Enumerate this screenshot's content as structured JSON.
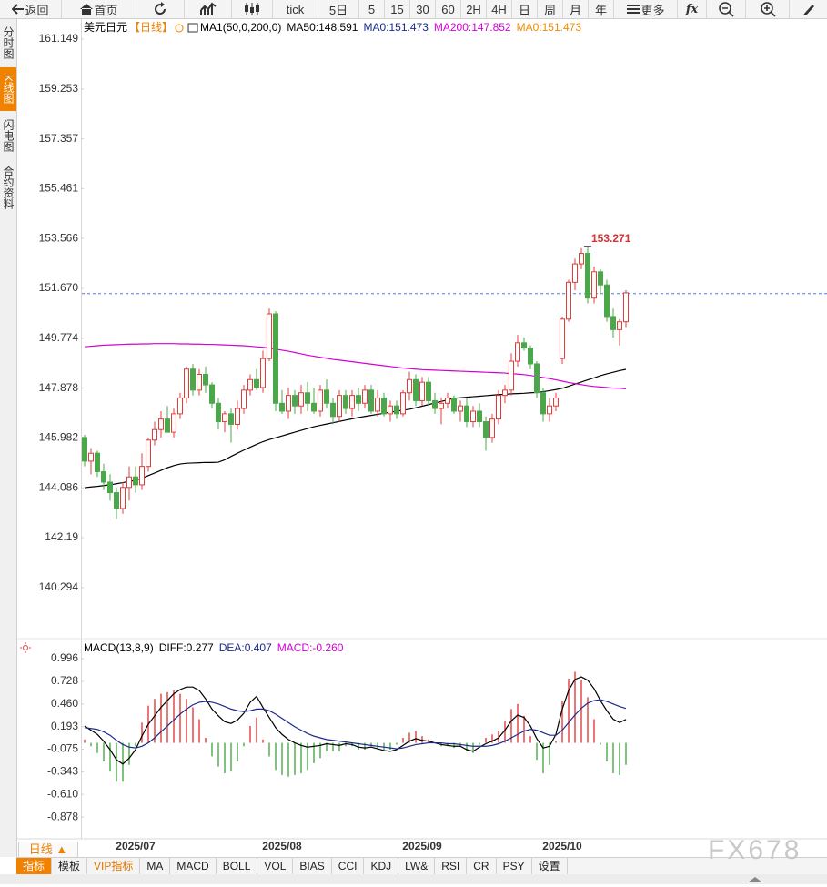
{
  "toolbar": {
    "back": "返回",
    "home": "首页",
    "tick": "tick",
    "periods": [
      "5日",
      "5",
      "15",
      "30",
      "60",
      "2H",
      "4H",
      "日",
      "周",
      "月",
      "年"
    ],
    "more": "更多",
    "fx": "fx"
  },
  "sidebar": [
    "分时图",
    "K线图",
    "闪电图",
    "合约资料"
  ],
  "period_button": "日线 ▲",
  "tabs": [
    "指标",
    "模板",
    "VIP指标",
    "MA",
    "MACD",
    "BOLL",
    "VOL",
    "BIAS",
    "CCI",
    "KDJ",
    "LW&",
    "RSI",
    "CR",
    "PSY",
    "设置"
  ],
  "watermark": "FX678",
  "chart_data": [
    {
      "type": "candlestick",
      "title": "美元日元",
      "period": "【日线】",
      "legend": [
        {
          "text": "MA1(50,0,200,0)",
          "color": "#000000"
        },
        {
          "text": "MA50:148.591",
          "color": "#000000"
        },
        {
          "text": "MA0:151.473",
          "color": "#1a2a8c"
        },
        {
          "text": "MA200:147.852",
          "color": "#d400d4"
        },
        {
          "text": "MA0:151.473",
          "color": "#f08c00"
        }
      ],
      "annotation": "153.271",
      "annotation_color": "#d63030",
      "up_color": "#e03c3c",
      "down_color": "#4aa84a",
      "ylim": [
        138.419,
        161.876
      ],
      "yticks": [
        161.149,
        159.253,
        157.357,
        155.461,
        153.566,
        {
          "value": 151.67,
          "label": "151.670"
        },
        149.774,
        147.878,
        145.982,
        144.086,
        142.19,
        140.294
      ],
      "grid": false,
      "ref_line": {
        "value": 151.473,
        "color": "#4a7be0"
      },
      "categories": [
        null,
        null,
        null,
        null,
        null,
        null,
        null,
        null,
        "2025/07",
        null,
        null,
        null,
        null,
        null,
        null,
        null,
        null,
        null,
        null,
        null,
        null,
        null,
        null,
        null,
        null,
        null,
        null,
        null,
        null,
        null,
        null,
        "2025/08",
        null,
        null,
        null,
        null,
        null,
        null,
        null,
        null,
        null,
        null,
        null,
        null,
        null,
        null,
        null,
        null,
        null,
        null,
        null,
        null,
        null,
        "2025/09",
        null,
        null,
        null,
        null,
        null,
        null,
        null,
        null,
        null,
        null,
        null,
        null,
        null,
        null,
        null,
        null,
        null,
        null,
        null,
        null,
        null,
        "2025/10",
        null,
        null,
        null,
        null,
        null,
        null,
        null,
        null,
        null,
        null
      ],
      "ohlc": [
        [
          146.0,
          146.1,
          144.9,
          145.1
        ],
        [
          145.1,
          145.6,
          144.6,
          145.4
        ],
        [
          145.4,
          145.5,
          144.5,
          144.7
        ],
        [
          144.7,
          145.0,
          144.0,
          144.3
        ],
        [
          144.3,
          144.6,
          143.6,
          143.9
        ],
        [
          143.9,
          144.1,
          142.9,
          143.3
        ],
        [
          143.3,
          144.3,
          143.1,
          144.1
        ],
        [
          144.1,
          144.9,
          143.6,
          144.5
        ],
        [
          144.5,
          144.9,
          143.9,
          144.2
        ],
        [
          144.2,
          145.4,
          144.0,
          144.9
        ],
        [
          144.9,
          146.0,
          144.7,
          145.9
        ],
        [
          145.9,
          146.6,
          145.7,
          146.3
        ],
        [
          146.3,
          147.0,
          146.0,
          146.7
        ],
        [
          146.7,
          147.2,
          146.3,
          146.2
        ],
        [
          146.2,
          147.1,
          146.0,
          146.9
        ],
        [
          146.9,
          147.7,
          146.7,
          147.5
        ],
        [
          147.5,
          148.7,
          147.3,
          148.6
        ],
        [
          148.6,
          148.8,
          147.6,
          147.8
        ],
        [
          147.8,
          148.6,
          147.6,
          148.4
        ],
        [
          148.4,
          148.7,
          147.7,
          148.0
        ],
        [
          148.0,
          148.1,
          147.1,
          147.3
        ],
        [
          147.3,
          147.5,
          146.3,
          146.6
        ],
        [
          146.6,
          147.0,
          146.2,
          146.9
        ],
        [
          146.9,
          147.1,
          145.8,
          146.5
        ],
        [
          146.5,
          147.4,
          146.3,
          147.1
        ],
        [
          147.1,
          148.0,
          146.9,
          147.8
        ],
        [
          147.8,
          148.4,
          147.6,
          148.2
        ],
        [
          148.2,
          148.6,
          147.8,
          147.9
        ],
        [
          147.9,
          149.3,
          147.7,
          149.0
        ],
        [
          149.0,
          150.9,
          148.9,
          150.7
        ],
        [
          150.7,
          150.8,
          147.0,
          147.3
        ],
        [
          147.3,
          147.8,
          146.9,
          147.0
        ],
        [
          147.0,
          147.9,
          146.7,
          147.6
        ],
        [
          147.6,
          147.8,
          146.9,
          147.2
        ],
        [
          147.2,
          148.0,
          146.9,
          147.7
        ],
        [
          147.7,
          148.1,
          147.0,
          147.3
        ],
        [
          147.3,
          147.9,
          146.9,
          147.0
        ],
        [
          147.0,
          148.0,
          146.8,
          147.8
        ],
        [
          147.8,
          148.2,
          147.1,
          147.3
        ],
        [
          147.3,
          147.5,
          146.5,
          146.8
        ],
        [
          146.8,
          147.8,
          146.6,
          147.6
        ],
        [
          147.6,
          147.8,
          146.9,
          147.1
        ],
        [
          147.1,
          147.8,
          146.8,
          147.6
        ],
        [
          147.6,
          147.9,
          147.0,
          147.3
        ],
        [
          147.3,
          148.0,
          147.1,
          147.8
        ],
        [
          147.8,
          148.0,
          146.9,
          147.0
        ],
        [
          147.0,
          147.8,
          146.8,
          147.5
        ],
        [
          147.5,
          147.7,
          146.8,
          146.9
        ],
        [
          146.9,
          147.4,
          146.6,
          147.2
        ],
        [
          147.2,
          147.4,
          146.7,
          146.9
        ],
        [
          146.9,
          147.8,
          146.8,
          147.7
        ],
        [
          147.7,
          148.5,
          147.4,
          148.2
        ],
        [
          148.2,
          148.4,
          147.2,
          147.4
        ],
        [
          147.4,
          148.3,
          147.2,
          148.1
        ],
        [
          148.1,
          148.3,
          147.2,
          147.4
        ],
        [
          147.4,
          147.7,
          146.9,
          147.1
        ],
        [
          147.1,
          147.5,
          146.5,
          147.3
        ],
        [
          147.3,
          147.7,
          147.1,
          147.5
        ],
        [
          147.5,
          147.6,
          146.9,
          147.0
        ],
        [
          147.0,
          147.4,
          146.6,
          147.2
        ],
        [
          147.2,
          147.5,
          146.4,
          146.6
        ],
        [
          146.6,
          147.2,
          146.4,
          147.0
        ],
        [
          147.0,
          147.3,
          146.4,
          146.6
        ],
        [
          146.6,
          146.8,
          145.5,
          146.0
        ],
        [
          146.0,
          146.9,
          145.8,
          146.7
        ],
        [
          146.7,
          147.8,
          146.5,
          147.6
        ],
        [
          147.6,
          148.0,
          147.3,
          147.8
        ],
        [
          147.8,
          149.2,
          147.6,
          148.9
        ],
        [
          148.9,
          149.9,
          148.7,
          149.6
        ],
        [
          149.6,
          149.8,
          149.3,
          149.4
        ],
        [
          149.4,
          149.5,
          148.6,
          148.8
        ],
        [
          148.8,
          148.9,
          147.5,
          147.7
        ],
        [
          147.7,
          147.9,
          146.6,
          146.9
        ],
        [
          146.9,
          147.5,
          146.6,
          147.2
        ],
        [
          147.2,
          147.7,
          147.0,
          147.5
        ],
        [
          149.0,
          150.6,
          148.8,
          150.5
        ],
        [
          150.5,
          152.0,
          150.4,
          151.9
        ],
        [
          151.9,
          152.8,
          151.6,
          152.6
        ],
        [
          152.6,
          153.2,
          152.4,
          153.0
        ],
        [
          153.0,
          153.271,
          151.1,
          151.3
        ],
        [
          151.3,
          152.5,
          151.1,
          152.3
        ],
        [
          152.3,
          152.4,
          151.5,
          151.8
        ],
        [
          151.8,
          152.0,
          150.4,
          150.6
        ],
        [
          150.6,
          150.9,
          149.8,
          150.1
        ],
        [
          150.1,
          150.5,
          149.5,
          150.4
        ],
        [
          150.4,
          151.6,
          150.2,
          151.5
        ]
      ],
      "series": [
        {
          "color": "#000000",
          "values": [
            144.09,
            144.12,
            144.14,
            144.17,
            144.2,
            144.24,
            144.28,
            144.33,
            144.37,
            144.45,
            144.55,
            144.65,
            144.75,
            144.85,
            144.93,
            144.99,
            145.02,
            145.03,
            145.04,
            145.05,
            145.05,
            145.06,
            145.15,
            145.28,
            145.4,
            145.52,
            145.63,
            145.74,
            145.84,
            145.92,
            145.99,
            146.06,
            146.13,
            146.2,
            146.27,
            146.34,
            146.41,
            146.46,
            146.51,
            146.56,
            146.61,
            146.66,
            146.71,
            146.76,
            146.8,
            146.84,
            146.88,
            146.92,
            146.96,
            147.0,
            147.04,
            147.07,
            147.13,
            147.19,
            147.25,
            147.31,
            147.37,
            147.43,
            147.49,
            147.51,
            147.53,
            147.55,
            147.57,
            147.59,
            147.61,
            147.63,
            147.64,
            147.66,
            147.67,
            147.68,
            147.7,
            147.71,
            147.74,
            147.78,
            147.82,
            147.87,
            147.95,
            148.03,
            148.11,
            148.19,
            148.27,
            148.35,
            148.42,
            148.48,
            148.54,
            148.59
          ]
        },
        {
          "color": "#d400d4",
          "values": [
            149.45,
            149.47,
            149.49,
            149.51,
            149.52,
            149.53,
            149.54,
            149.55,
            149.55,
            149.56,
            149.56,
            149.57,
            149.57,
            149.57,
            149.57,
            149.56,
            149.56,
            149.55,
            149.55,
            149.54,
            149.54,
            149.53,
            149.52,
            149.51,
            149.5,
            149.49,
            149.47,
            149.45,
            149.43,
            149.4,
            149.36,
            149.32,
            149.28,
            149.23,
            149.18,
            149.13,
            149.09,
            149.05,
            149.01,
            148.97,
            148.94,
            148.91,
            148.88,
            148.85,
            148.82,
            148.79,
            148.76,
            148.73,
            148.7,
            148.67,
            148.64,
            148.62,
            148.6,
            148.58,
            148.57,
            148.56,
            148.55,
            148.54,
            148.53,
            148.52,
            148.51,
            148.5,
            148.49,
            148.48,
            148.47,
            148.46,
            148.45,
            148.43,
            148.41,
            148.39,
            148.36,
            148.32,
            148.28,
            148.24,
            148.19,
            148.14,
            148.09,
            148.05,
            148.01,
            147.97,
            147.94,
            147.92,
            147.9,
            147.88,
            147.87,
            147.85
          ]
        }
      ]
    },
    {
      "type": "macd",
      "legend": [
        {
          "text": "MACD(13,8,9)",
          "color": "#000000"
        },
        {
          "text": "DIFF:0.277",
          "color": "#000000"
        },
        {
          "text": "DEA:0.407",
          "color": "#1a2a8c"
        },
        {
          "text": "MACD:-0.260",
          "color": "#d400d4"
        }
      ],
      "ylim": [
        -1.134,
        1.2
      ],
      "yticks": [
        0.996,
        0.728,
        {
          "value": 0.46,
          "label": "0.460"
        },
        0.193,
        -0.075,
        -0.343,
        {
          "value": -0.61,
          "label": "-0.610"
        },
        -0.878
      ],
      "hist": {
        "up_color": "#e03c3c",
        "down_color": "#4aa84a",
        "values": [
          0.04,
          -0.04,
          -0.12,
          -0.22,
          -0.34,
          -0.46,
          -0.46,
          -0.26,
          -0.04,
          0.24,
          0.44,
          0.52,
          0.58,
          0.6,
          0.62,
          0.58,
          0.52,
          0.42,
          0.28,
          0.06,
          -0.16,
          -0.28,
          -0.36,
          -0.34,
          -0.22,
          -0.04,
          0.2,
          0.3,
          0.04,
          -0.16,
          -0.32,
          -0.38,
          -0.4,
          -0.38,
          -0.36,
          -0.32,
          -0.24,
          -0.18,
          -0.1,
          -0.1,
          -0.1,
          -0.04,
          -0.04,
          -0.08,
          -0.08,
          -0.04,
          -0.06,
          -0.08,
          -0.08,
          -0.02,
          0.06,
          0.12,
          0.14,
          0.08,
          0.04,
          0,
          -0.04,
          -0.04,
          -0.06,
          -0.04,
          -0.1,
          -0.12,
          -0.02,
          0.06,
          0.1,
          0.14,
          0.26,
          0.4,
          0.46,
          0.32,
          0.08,
          -0.2,
          -0.36,
          -0.26,
          0.02,
          0.5,
          0.76,
          0.84,
          0.74,
          0.54,
          0.28,
          -0.02,
          -0.22,
          -0.36,
          -0.38,
          -0.26
        ]
      },
      "series": [
        {
          "color": "#000000",
          "values": [
            0.2,
            0.15,
            0.1,
            0.02,
            -0.08,
            -0.2,
            -0.25,
            -0.18,
            -0.08,
            0.08,
            0.22,
            0.32,
            0.42,
            0.5,
            0.58,
            0.63,
            0.66,
            0.66,
            0.62,
            0.52,
            0.4,
            0.32,
            0.25,
            0.23,
            0.27,
            0.35,
            0.48,
            0.55,
            0.42,
            0.3,
            0.18,
            0.1,
            0.04,
            0,
            -0.03,
            -0.05,
            -0.04,
            -0.03,
            -0.01,
            -0.02,
            -0.03,
            -0.01,
            -0.02,
            -0.05,
            -0.06,
            -0.05,
            -0.07,
            -0.09,
            -0.1,
            -0.08,
            -0.03,
            0.02,
            0.05,
            0.03,
            0.02,
            0,
            -0.02,
            -0.03,
            -0.04,
            -0.04,
            -0.08,
            -0.1,
            -0.05,
            -0.01,
            0.02,
            0.06,
            0.15,
            0.26,
            0.33,
            0.3,
            0.2,
            0.05,
            -0.06,
            -0.04,
            0.1,
            0.4,
            0.62,
            0.75,
            0.78,
            0.74,
            0.64,
            0.5,
            0.38,
            0.28,
            0.24,
            0.277
          ]
        },
        {
          "color": "#1a2a8c",
          "values": [
            0.18,
            0.17,
            0.16,
            0.13,
            0.09,
            0.03,
            -0.02,
            -0.05,
            -0.06,
            -0.04,
            0,
            0.06,
            0.13,
            0.2,
            0.27,
            0.34,
            0.4,
            0.45,
            0.48,
            0.49,
            0.48,
            0.46,
            0.43,
            0.4,
            0.38,
            0.37,
            0.38,
            0.4,
            0.4,
            0.38,
            0.34,
            0.29,
            0.24,
            0.19,
            0.15,
            0.11,
            0.08,
            0.06,
            0.04,
            0.03,
            0.02,
            0.01,
            0,
            -0.01,
            -0.02,
            -0.03,
            -0.04,
            -0.05,
            -0.06,
            -0.07,
            -0.06,
            -0.04,
            -0.02,
            -0.01,
            0,
            0,
            0,
            -0.01,
            -0.01,
            -0.02,
            -0.03,
            -0.04,
            -0.04,
            -0.04,
            -0.03,
            -0.01,
            0.02,
            0.06,
            0.1,
            0.14,
            0.16,
            0.15,
            0.12,
            0.09,
            0.09,
            0.15,
            0.24,
            0.33,
            0.41,
            0.47,
            0.5,
            0.51,
            0.49,
            0.46,
            0.43,
            0.407
          ]
        }
      ]
    }
  ]
}
